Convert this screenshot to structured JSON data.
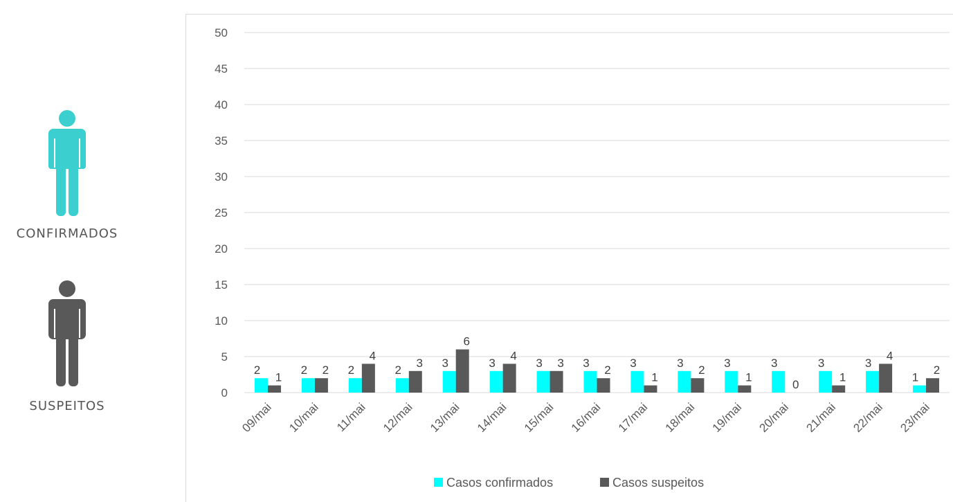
{
  "sidebar": {
    "confirmed_label": "CONFIRMADOS",
    "suspected_label": "SUSPEITOS",
    "confirmed_icon": "person-icon",
    "suspected_icon": "person-icon",
    "confirmed_color": "#3ccfcf",
    "suspected_color": "#595959"
  },
  "chart_data": {
    "type": "bar",
    "categories": [
      "09/mai",
      "10/mai",
      "11/mai",
      "12/mai",
      "13/mai",
      "14/mai",
      "15/mai",
      "16/mai",
      "17/mai",
      "18/mai",
      "19/mai",
      "20/mai",
      "21/mai",
      "22/mai",
      "23/mai"
    ],
    "series": [
      {
        "name": "Casos confirmados",
        "color": "#00ffff",
        "values": [
          2,
          2,
          2,
          2,
          3,
          3,
          3,
          3,
          3,
          3,
          3,
          3,
          3,
          3,
          1
        ]
      },
      {
        "name": "Casos suspeitos",
        "color": "#595959",
        "values": [
          1,
          2,
          4,
          3,
          6,
          4,
          3,
          2,
          1,
          2,
          1,
          0,
          1,
          4,
          2
        ]
      }
    ],
    "ylim": [
      0,
      50
    ],
    "yticks": [
      0,
      5,
      10,
      15,
      20,
      25,
      30,
      35,
      40,
      45,
      50
    ],
    "grid": true,
    "legend": "bottom"
  }
}
